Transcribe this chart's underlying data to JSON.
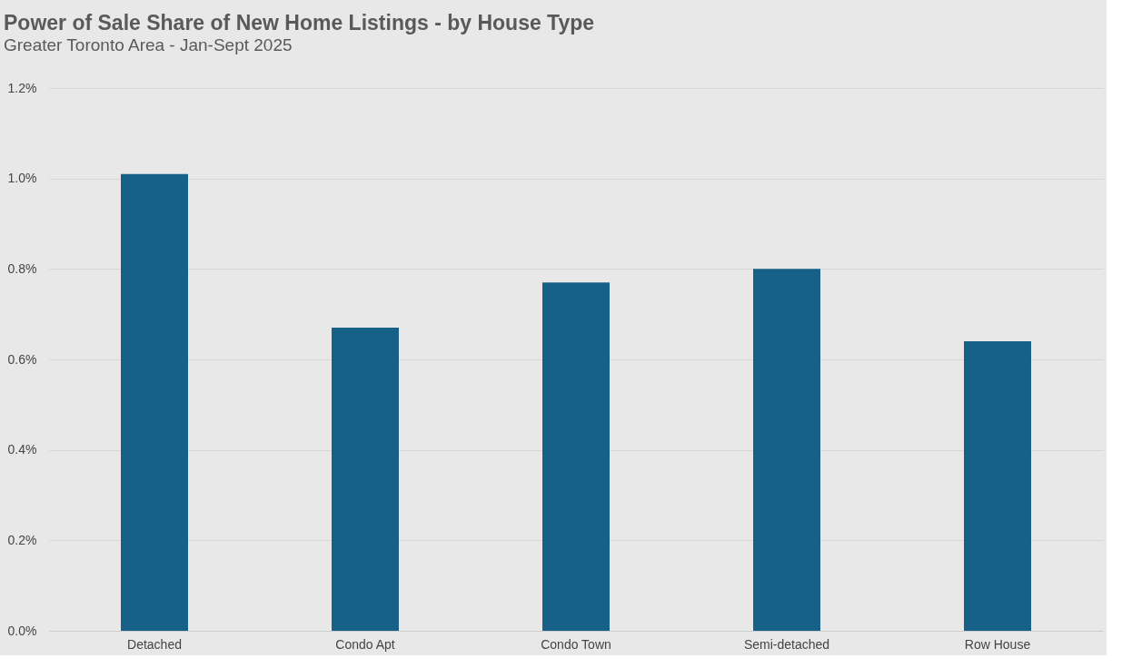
{
  "chart_data": {
    "type": "bar",
    "title": "Power of Sale Share of New Home Listings - by House Type",
    "subtitle": "Greater Toronto Area - Jan-Sept 2025",
    "categories": [
      "Detached",
      "Condo Apt",
      "Condo Town",
      "Semi-detached",
      "Row House"
    ],
    "values": [
      1.01,
      0.67,
      0.77,
      0.8,
      0.64
    ],
    "color": "#176087",
    "ylim": [
      0,
      1.2
    ],
    "yticks": [
      {
        "value": 0,
        "label": "0.0%"
      },
      {
        "value": 0.2,
        "label": "0.2%"
      },
      {
        "value": 0.4,
        "label": "0.4%"
      },
      {
        "value": 0.6,
        "label": "0.6%"
      },
      {
        "value": 0.8,
        "label": "0.8%"
      },
      {
        "value": 1.0,
        "label": "1.0%"
      },
      {
        "value": 1.2,
        "label": "1.2%"
      }
    ],
    "grid": "y"
  }
}
